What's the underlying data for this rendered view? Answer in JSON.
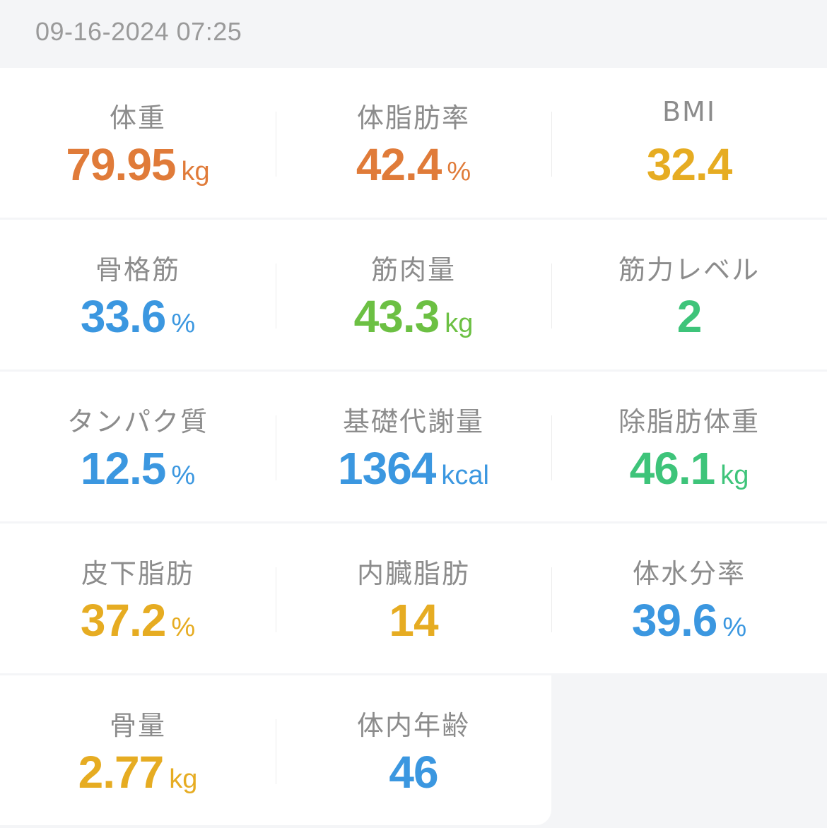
{
  "timestamp": "09-16-2024 07:25",
  "colors": {
    "orange": "#e07b39",
    "yellow": "#e6ac22",
    "blue": "#3b97e0",
    "green_light": "#6cc043",
    "green": "#3ec47a"
  },
  "metrics": [
    {
      "label": "体重",
      "value": "79.95",
      "unit": "kg",
      "color": "#e07b39"
    },
    {
      "label": "体脂肪率",
      "value": "42.4",
      "unit": "%",
      "color": "#e07b39"
    },
    {
      "label": "BMI",
      "value": "32.4",
      "unit": "",
      "color": "#e6ac22"
    },
    {
      "label": "骨格筋",
      "value": "33.6",
      "unit": "%",
      "color": "#3b97e0"
    },
    {
      "label": "筋肉量",
      "value": "43.3",
      "unit": "kg",
      "color": "#6cc043"
    },
    {
      "label": "筋力レベル",
      "value": "2",
      "unit": "",
      "color": "#3ec47a"
    },
    {
      "label": "タンパク質",
      "value": "12.5",
      "unit": "%",
      "color": "#3b97e0"
    },
    {
      "label": "基礎代謝量",
      "value": "1364",
      "unit": "kcal",
      "color": "#3b97e0"
    },
    {
      "label": "除脂肪体重",
      "value": "46.1",
      "unit": "kg",
      "color": "#3ec47a"
    },
    {
      "label": "皮下脂肪",
      "value": "37.2",
      "unit": "%",
      "color": "#e6ac22"
    },
    {
      "label": "内臓脂肪",
      "value": "14",
      "unit": "",
      "color": "#e6ac22"
    },
    {
      "label": "体水分率",
      "value": "39.6",
      "unit": "%",
      "color": "#3b97e0"
    },
    {
      "label": "骨量",
      "value": "2.77",
      "unit": "kg",
      "color": "#e6ac22"
    },
    {
      "label": "体内年齢",
      "value": "46",
      "unit": "",
      "color": "#3b97e0"
    }
  ]
}
